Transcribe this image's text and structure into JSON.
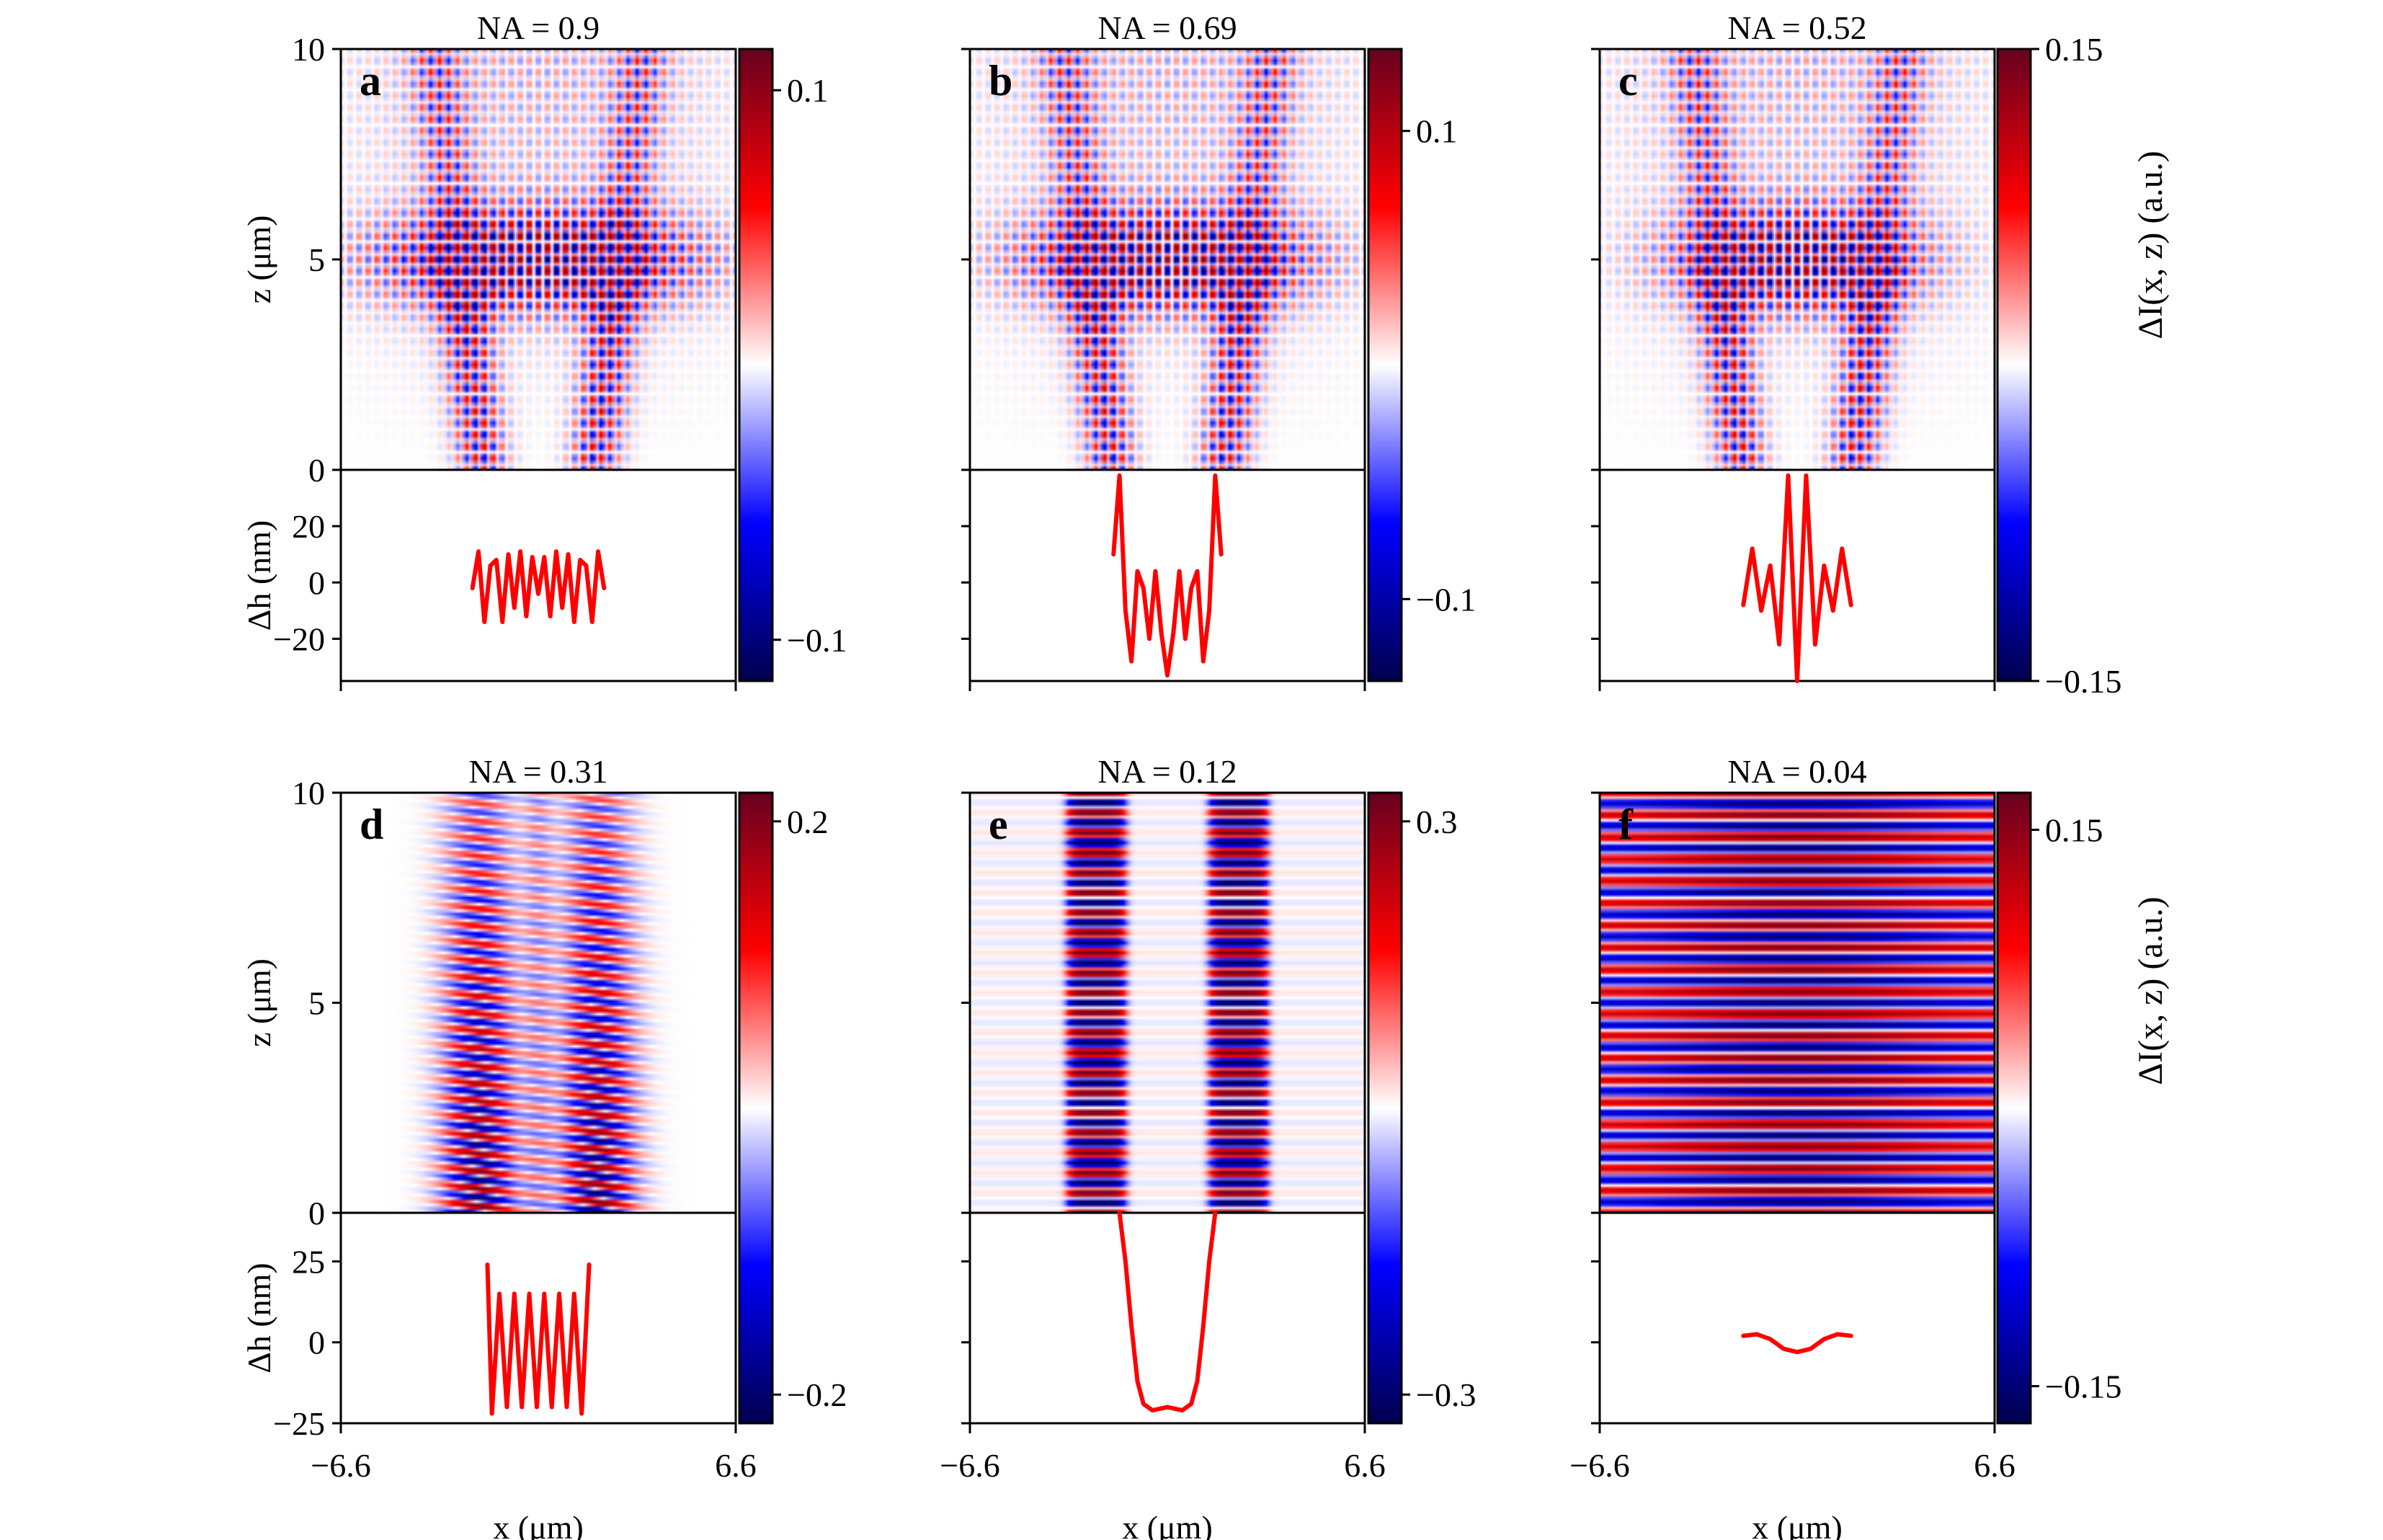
{
  "figure": {
    "colorbar_label": "ΔI(x, z) (a.u.)",
    "colors": {
      "positive": "#67001f",
      "mid_pos": "#ff0000",
      "zero": "#ffffff",
      "mid_neg": "#0000ff",
      "negative": "#00004c",
      "profile": "#ff0000"
    }
  },
  "chart_data": [
    {
      "type": "heatmap",
      "panel": "a",
      "title": "NA = 0.9",
      "xlabel": "",
      "ylabel": "z (μm)",
      "xlim": [
        -6.6,
        6.6
      ],
      "ylim": [
        0,
        10
      ],
      "yticks": [
        "0",
        "5",
        "10"
      ],
      "pattern": "lattice",
      "colorbar": {
        "ticks": [
          "0.1",
          "−0.1"
        ],
        "tick_values": [
          0.1,
          -0.1
        ],
        "range": [
          -0.115,
          0.115
        ]
      },
      "profile": {
        "type": "line",
        "ylabel": "Δh (nm)",
        "yticks": [
          "20",
          "0",
          "−20"
        ],
        "tick_values": [
          20,
          0,
          -20
        ],
        "ylim": [
          -35,
          40
        ],
        "x": [
          -2.2,
          -2.0,
          -1.8,
          -1.6,
          -1.4,
          -1.2,
          -1.0,
          -0.8,
          -0.6,
          -0.4,
          -0.2,
          0.0,
          0.2,
          0.4,
          0.6,
          0.8,
          1.0,
          1.2,
          1.4,
          1.6,
          1.8,
          2.0,
          2.2
        ],
        "y": [
          -2,
          11,
          -14,
          6,
          8,
          -14,
          10,
          -9,
          11,
          -12,
          9,
          -4,
          9,
          -12,
          11,
          -9,
          10,
          -14,
          8,
          6,
          -14,
          11,
          -2
        ]
      }
    },
    {
      "type": "heatmap",
      "panel": "b",
      "title": "NA = 0.69",
      "xlabel": "",
      "ylabel": "",
      "xlim": [
        -6.6,
        6.6
      ],
      "ylim": [
        0,
        10
      ],
      "yticks": [],
      "pattern": "lattice",
      "colorbar": {
        "ticks": [
          "0.1",
          "−0.1"
        ],
        "tick_values": [
          0.1,
          -0.1
        ],
        "range": [
          -0.135,
          0.135
        ]
      },
      "profile": {
        "type": "line",
        "ylabel": "",
        "yticks": [],
        "tick_values": [],
        "ylim": [
          -35,
          40
        ],
        "x": [
          -1.8,
          -1.6,
          -1.4,
          -1.2,
          -1.0,
          -0.8,
          -0.6,
          -0.4,
          -0.2,
          0.0,
          0.2,
          0.4,
          0.6,
          0.8,
          1.0,
          1.2,
          1.4,
          1.6,
          1.8
        ],
        "y": [
          10,
          38,
          -10,
          -28,
          4,
          -2,
          -20,
          4,
          -18,
          -33,
          -18,
          4,
          -20,
          -2,
          4,
          -28,
          -10,
          38,
          10
        ]
      }
    },
    {
      "type": "heatmap",
      "panel": "c",
      "title": "NA = 0.52",
      "xlabel": "",
      "ylabel": "",
      "xlim": [
        -6.6,
        6.6
      ],
      "ylim": [
        0,
        10
      ],
      "yticks": [],
      "pattern": "lattice",
      "colorbar": {
        "ticks": [
          "0.15",
          "−0.15"
        ],
        "tick_values": [
          0.15,
          -0.15
        ],
        "range": [
          -0.15,
          0.15
        ]
      },
      "profile": {
        "type": "line",
        "ylabel": "",
        "yticks": [],
        "tick_values": [],
        "ylim": [
          -35,
          40
        ],
        "x": [
          -1.8,
          -1.5,
          -1.2,
          -0.9,
          -0.6,
          -0.3,
          0.0,
          0.3,
          0.6,
          0.9,
          1.2,
          1.5,
          1.8
        ],
        "y": [
          -8,
          12,
          -10,
          6,
          -22,
          38,
          -35,
          38,
          -22,
          6,
          -10,
          12,
          -8
        ]
      }
    },
    {
      "type": "heatmap",
      "panel": "d",
      "title": "NA = 0.31",
      "xlabel": "x (μm)",
      "ylabel": "z (μm)",
      "xlim": [
        -6.6,
        6.6
      ],
      "ylim": [
        0,
        10
      ],
      "xticks": [
        "−6.6",
        "6.6"
      ],
      "yticks": [
        "0",
        "5",
        "10"
      ],
      "pattern": "double-column-fringes",
      "colorbar": {
        "ticks": [
          "0.2",
          "−0.2"
        ],
        "tick_values": [
          0.2,
          -0.2
        ],
        "range": [
          -0.22,
          0.22
        ]
      },
      "profile": {
        "type": "line",
        "ylabel": "Δh (nm)",
        "yticks": [
          "25",
          "0",
          "−25"
        ],
        "tick_values": [
          25,
          0,
          -25
        ],
        "ylim": [
          -25,
          40
        ],
        "x": [
          -1.7,
          -1.55,
          -1.3,
          -1.05,
          -0.8,
          -0.55,
          -0.3,
          -0.05,
          0.2,
          0.45,
          0.7,
          0.95,
          1.2,
          1.45,
          1.7
        ],
        "y": [
          24,
          -22,
          15,
          -20,
          15,
          -20,
          15,
          -20,
          15,
          -20,
          15,
          -20,
          15,
          -22,
          24
        ]
      }
    },
    {
      "type": "heatmap",
      "panel": "e",
      "title": "NA = 0.12",
      "xlabel": "x (μm)",
      "ylabel": "",
      "xlim": [
        -6.6,
        6.6
      ],
      "ylim": [
        0,
        10
      ],
      "xticks": [
        "−6.6",
        "6.6"
      ],
      "yticks": [],
      "pattern": "two-bands",
      "colorbar": {
        "ticks": [
          "0.3",
          "−0.3"
        ],
        "tick_values": [
          0.3,
          -0.3
        ],
        "range": [
          -0.33,
          0.33
        ]
      },
      "profile": {
        "type": "line",
        "ylabel": "",
        "yticks": [],
        "tick_values": [],
        "ylim": [
          -25,
          40
        ],
        "x": [
          -1.6,
          -1.4,
          -1.2,
          -1.0,
          -0.8,
          -0.5,
          0.0,
          0.5,
          0.8,
          1.0,
          1.2,
          1.4,
          1.6
        ],
        "y": [
          40,
          25,
          5,
          -12,
          -19,
          -21,
          -20,
          -21,
          -19,
          -12,
          5,
          25,
          40
        ]
      }
    },
    {
      "type": "heatmap",
      "panel": "f",
      "title": "NA = 0.04",
      "xlabel": "x (μm)",
      "ylabel": "",
      "xlim": [
        -6.6,
        6.6
      ],
      "ylim": [
        0,
        10
      ],
      "xticks": [
        "−6.6",
        "6.6"
      ],
      "yticks": [],
      "pattern": "horizontal-fringes",
      "colorbar": {
        "ticks": [
          "0.15",
          "−0.15"
        ],
        "tick_values": [
          0.15,
          -0.15
        ],
        "range": [
          -0.17,
          0.17
        ]
      },
      "profile": {
        "type": "line",
        "ylabel": "",
        "yticks": [],
        "tick_values": [],
        "ylim": [
          -25,
          40
        ],
        "x": [
          -1.8,
          -1.35,
          -0.9,
          -0.45,
          0.0,
          0.45,
          0.9,
          1.35,
          1.8
        ],
        "y": [
          2,
          2.5,
          1,
          -2,
          -3,
          -2,
          1,
          2.5,
          2
        ]
      }
    }
  ]
}
